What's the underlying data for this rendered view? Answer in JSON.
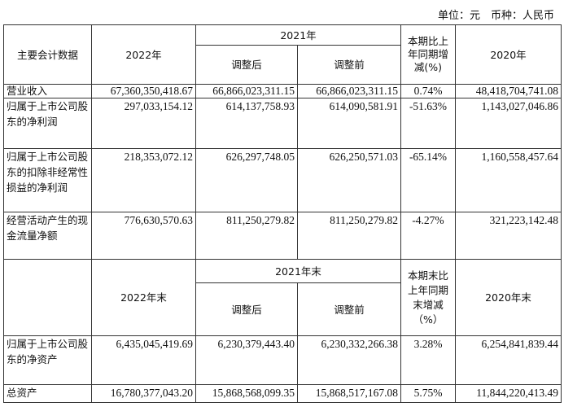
{
  "unit_line": "单位：元　币种：人民币",
  "header1": {
    "item": "主要会计数据",
    "y2022": "2022年",
    "y2021": "2021年",
    "adj_after": "调整后",
    "adj_before": "调整前",
    "change": "本期比上年同期增减(%)",
    "y2020": "2020年"
  },
  "rows1": [
    {
      "label": "营业收入",
      "v2022": "67,360,350,418.67",
      "after": "66,866,023,311.15",
      "before": "66,866,023,311.15",
      "change": "0.74%",
      "v2020": "48,418,704,741.08"
    },
    {
      "label": "归属于上市公司股东的净利润",
      "v2022": "297,033,154.12",
      "after": "614,137,758.93",
      "before": "614,090,581.91",
      "change": "-51.63%",
      "v2020": "1,143,027,046.86"
    },
    {
      "label": "归属于上市公司股东的扣除非经常性损益的净利润",
      "v2022": "218,353,072.12",
      "after": "626,297,748.05",
      "before": "626,250,571.03",
      "change": "-65.14%",
      "v2020": "1,160,558,457.64"
    },
    {
      "label": "经营活动产生的现金流量净额",
      "v2022": "776,630,570.63",
      "after": "811,250,279.82",
      "before": "811,250,279.82",
      "change": "-4.27%",
      "v2020": "321,223,142.48"
    }
  ],
  "header2": {
    "item": "",
    "y2022": "2022年末",
    "y2021": "2021年末",
    "adj_after": "调整后",
    "adj_before": "调整前",
    "change": "本期末比上年同期末增减（%）",
    "y2020": "2020年末"
  },
  "rows2": [
    {
      "label": "归属于上市公司股东的净资产",
      "v2022": "6,435,045,419.69",
      "after": "6,230,379,443.40",
      "before": "6,230,332,266.38",
      "change": "3.28%",
      "v2020": "6,254,841,839.44"
    },
    {
      "label": "总资产",
      "v2022": "16,780,377,043.20",
      "after": "15,868,568,099.35",
      "before": "15,868,517,167.08",
      "change": "5.75%",
      "v2020": "11,844,220,413.49"
    }
  ]
}
